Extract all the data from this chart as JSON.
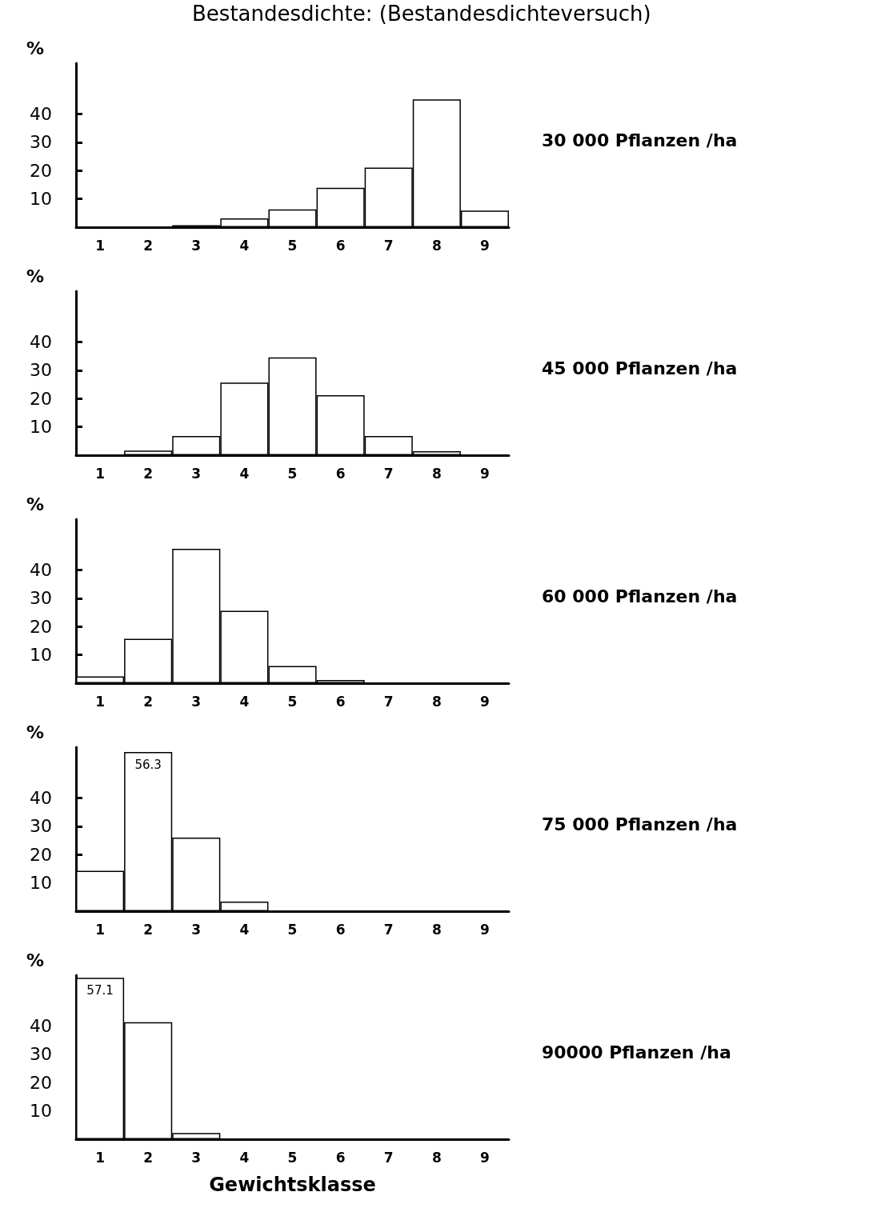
{
  "chart_data": [
    {
      "type": "bar",
      "title": "Bestandesdichte: (Bestandesdichteversuch)",
      "annotations": [
        "30 000 Pflanzen /ha"
      ],
      "ylabel": "%",
      "categories": [
        "1",
        "2",
        "3",
        "4",
        "5",
        "6",
        "7",
        "8",
        "9"
      ],
      "values": [
        0,
        0,
        0.7,
        3.1,
        6.3,
        13.9,
        21.1,
        45.2,
        5.9
      ],
      "color": "#ffffff",
      "ylim": [
        0,
        58
      ],
      "yticks": [
        10,
        20,
        30,
        40
      ]
    },
    {
      "type": "bar",
      "annotations": [
        "45 000 Pflanzen /ha"
      ],
      "ylabel": "%",
      "categories": [
        "1",
        "2",
        "3",
        "4",
        "5",
        "6",
        "7",
        "8",
        "9"
      ],
      "values": [
        0,
        1.6,
        6.8,
        25.7,
        34.6,
        21.2,
        6.8,
        1.4,
        0
      ],
      "color": "#ffffff",
      "ylim": [
        0,
        58
      ],
      "yticks": [
        10,
        20,
        30,
        40
      ]
    },
    {
      "type": "bar",
      "annotations": [
        "60 000 Pflanzen /ha"
      ],
      "ylabel": "%",
      "categories": [
        "1",
        "2",
        "3",
        "4",
        "5",
        "6",
        "7",
        "8",
        "9"
      ],
      "values": [
        2.4,
        15.7,
        47.5,
        25.6,
        6.1,
        1.1,
        0,
        0,
        0
      ],
      "color": "#ffffff",
      "ylim": [
        0,
        58
      ],
      "yticks": [
        10,
        20,
        30,
        40
      ]
    },
    {
      "type": "bar",
      "annotations": [
        "75 000 Pflanzen /ha"
      ],
      "ylabel": "%",
      "categories": [
        "1",
        "2",
        "3",
        "4",
        "5",
        "6",
        "7",
        "8",
        "9"
      ],
      "values": [
        14.3,
        56.3,
        26,
        3.4,
        0,
        0,
        0,
        0,
        0
      ],
      "value_labels": [
        null,
        "56.3",
        null,
        null,
        null,
        null,
        null,
        null,
        null
      ],
      "color": "#ffffff",
      "ylim": [
        0,
        58
      ],
      "yticks": [
        10,
        20,
        30,
        40
      ]
    },
    {
      "type": "bar",
      "annotations": [
        "90000 Pflanzen /ha"
      ],
      "ylabel": "%",
      "xlabel": "Gewichtsklasse",
      "categories": [
        "1",
        "2",
        "3",
        "4",
        "5",
        "6",
        "7",
        "8",
        "9"
      ],
      "values": [
        57.1,
        41.4,
        2.2,
        0,
        0,
        0,
        0,
        0,
        0
      ],
      "value_labels": [
        "57.1",
        null,
        null,
        null,
        null,
        null,
        null,
        null,
        null
      ],
      "color": "#ffffff",
      "ylim": [
        0,
        58
      ],
      "yticks": [
        10,
        20,
        30,
        40
      ]
    }
  ]
}
